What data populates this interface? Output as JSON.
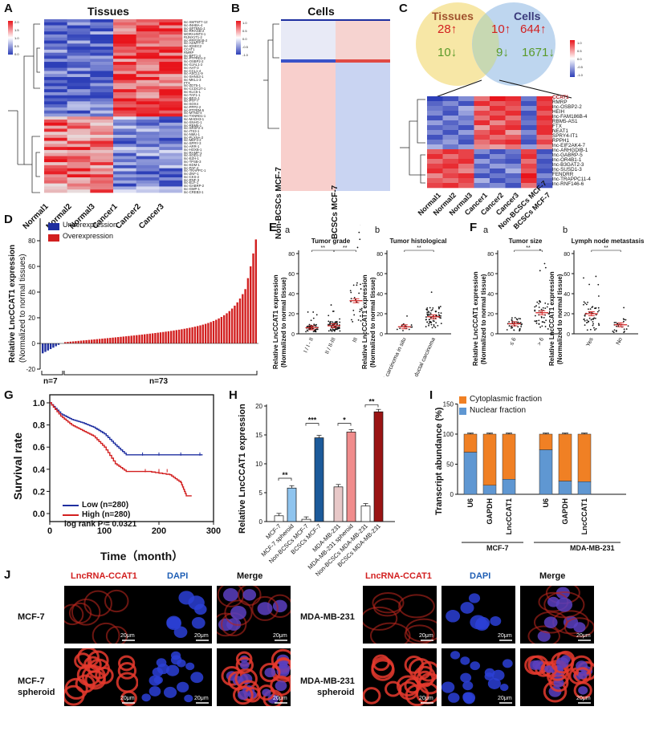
{
  "panel_letters": {
    "A": "A",
    "B": "B",
    "C": "C",
    "D": "D",
    "E": "E",
    "F": "F",
    "G": "G",
    "H": "H",
    "I": "I",
    "J": "J"
  },
  "panelA": {
    "title": "Tissues",
    "samples": [
      "Normal1",
      "Normal2",
      "Normal3",
      "Cancer1",
      "Cancer2",
      "Cancer3"
    ],
    "genes": [
      "lnc-SMTNT7-12",
      "lnc-INHBA-4",
      "lnc-SPTBN1-1",
      "lnc-RRAGB-2",
      "MORAHNT3-1",
      "RUNX1T1-2",
      "lnc-PPP2R1B-2",
      "lnc-ADMTT-4",
      "lnc-IQSEC2",
      "CCAT1",
      "RMRP",
      "lnc-BPT1-4",
      "lnc-PTPRD1-2",
      "lnc-OSBP2-2",
      "lnc-GJAL1-2",
      "lnc-AHT-3",
      "lnc-CCL1-4",
      "lnc-ASCL1-9",
      "lnc-SHNS3-1",
      "lnc-MKL1-3",
      "FTX",
      "lnc-ZDT5-1",
      "lnc-CCDC27-1",
      "lnc-KLC5-1",
      "lnc-TAF1-1",
      "lnc-BRI1-1",
      "lnc-PTF-7",
      "lnc-SOX4",
      "lnc-PPP2-2",
      "lnc-PTPRM-5",
      "lnc-MTND-4",
      "lnc-TXNRD1-1",
      "lnc-MADH3-1",
      "lnc-SNHG-1",
      "lnc-RBM5-1",
      "lnc-SRSF2-4",
      "lnc-ITS3-1",
      "lnc-NMU-1",
      "lnc-PLXNA-2",
      "lnc-MEF2-2",
      "lnc-SPRY-3",
      "lnc-ARR-1",
      "lnc-HOXB-1",
      "lnc-RAMP-1",
      "lnc-SOD1-2",
      "lnc-EZH-1",
      "lnc-TPSB-3",
      "lnc-KDM-1",
      "lnc-PAF-4",
      "lnc-TRAPPC-1",
      "lnc-ZNF-1",
      "lnc-CKS-2",
      "lnc-RNF-3",
      "lnc-ELF-1",
      "lnc-GABRP-2",
      "lnc-GMP-1",
      "lnc-CREB3-1"
    ],
    "legend_ticks": [
      "2.0",
      "1.5",
      "1.0",
      "0.5",
      "0.0"
    ]
  },
  "panelB": {
    "title": "Cells",
    "samples": [
      "Non-BCSCs MCF-7",
      "BCSCs MCF-7"
    ],
    "legend_ticks": [
      "1.0",
      "0.5",
      "0.0",
      "-0.5",
      "-1.0"
    ]
  },
  "panelC": {
    "venn_left_title": "Tissues",
    "venn_right_title": "Cells",
    "venn_left_up": "28↑",
    "venn_left_down": "10↓",
    "venn_mid_up": "10↑",
    "venn_mid_down": "9↓",
    "venn_right_up": "644↑",
    "venn_right_down": "1671↓",
    "genes": [
      "CCAT1",
      "RMRP",
      "lnc-OSBP2-2",
      "HEIH",
      "lnc-FAM186B-4",
      "RBM5-AS1",
      "FTX",
      "NEAT1",
      "SPRY4-IT1",
      "RPPH1",
      "lnc-EIF2AK4-7",
      "lnc-ARHGDIB-1",
      "lnc-GABRP-5",
      "lnc-OR4B1-1",
      "lnc-B3GAT2-3",
      "lnc-SUSD1-3",
      "FENDRR",
      "lnc-TRAPPC11-4",
      "lnc-RNF146-6"
    ],
    "samples": [
      "Normal1",
      "Normal2",
      "Normal3",
      "Cancer1",
      "Cancer2",
      "Cancer3",
      "Non-BCSCs MCF-7",
      "BCSCs MCF-7"
    ],
    "legend_ticks": [
      "1.0",
      "0.5",
      "0.0",
      "-0.5",
      "-1.0"
    ]
  },
  "panelD": {
    "legend_under": "Underexpression",
    "legend_over": "Overexpression",
    "ylabel": "Relative LncCCAT1 expression",
    "ylabel2": "(Normalized to normal tissues)",
    "yticks": [
      "80",
      "60",
      "40",
      "20",
      "0",
      "-20"
    ],
    "n_under": "n=7",
    "n_over": "n=73"
  },
  "panelE": {
    "sub_a": "a",
    "sub_b": "b",
    "title_a": "Tumor grade",
    "title_b": "Tumor histological",
    "ylabel": "Relative LncCCAT1 expression",
    "ylabel2": "(Normalized to normal tissue)",
    "yticks": [
      "80",
      "60",
      "40",
      "20",
      "0"
    ],
    "cats_a": [
      "I / I - II",
      "II / II-III",
      "III"
    ],
    "cats_b": [
      "Ductal carcinoma in situ",
      "Invasive ductal carcinoma"
    ],
    "sig": "**"
  },
  "panelF": {
    "sub_a": "a",
    "sub_b": "b",
    "title_a": "Tumor size",
    "title_b": "Lymph node metastasis",
    "ylabel": "Relative LncCCAT1 expression",
    "ylabel2": "(Normalized to normal tissue)",
    "yticks": [
      "80",
      "60",
      "40",
      "20",
      "0"
    ],
    "cats_a": [
      "≤ 6",
      "> 6"
    ],
    "cats_b": [
      "Yes",
      "No"
    ],
    "sig": "**"
  },
  "panelG": {
    "ylabel": "Survival rate",
    "xlabel": "Time（month）",
    "yticks": [
      "1.0",
      "0.8",
      "0.6",
      "0.4",
      "0.2",
      "0.0"
    ],
    "xticks": [
      "0",
      "100",
      "200",
      "300"
    ],
    "legend_low": "Low (n=280)",
    "legend_high": "High (n=280)",
    "logrank": "log rank P = 0.0321"
  },
  "panelH": {
    "ylabel": "Relative LncCCAT1 expression",
    "yticks": [
      "20",
      "15",
      "10",
      "5",
      "0"
    ],
    "sig": [
      "**",
      "***",
      "*",
      "**"
    ]
  },
  "panelI": {
    "ylabel": "Transcript abundance (%)",
    "yticks": [
      "150",
      "100",
      "50",
      "0"
    ],
    "legend_cyto": "Cytoplasmic fraction",
    "legend_nuc": "Nuclear fraction",
    "group1": "MCF-7",
    "group2": "MDA-MB-231"
  },
  "panelJ": {
    "col_ccat1": "LncRNA-CCAT1",
    "col_dapi": "DAPI",
    "col_merge": "Merge",
    "row1": "MCF-7",
    "row2a": "MCF-7",
    "row2b": "spheroid",
    "row3": "MDA-MB-231",
    "row4a": "MDA-MB-231",
    "row4b": "spheroid",
    "scale": "20μm"
  },
  "chart_data": [
    {
      "type": "heatmap",
      "title": "Tissues",
      "columns": [
        "Normal1",
        "Normal2",
        "Normal3",
        "Cancer1",
        "Cancer2",
        "Cancer3"
      ]
    },
    {
      "type": "heatmap",
      "title": "Cells",
      "columns": [
        "Non-BCSCs MCF-7",
        "BCSCs MCF-7"
      ]
    },
    {
      "type": "bar",
      "title": "Relative LncCCAT1 expression (Normalized to normal tissues)",
      "series": [
        {
          "name": "Underexpression",
          "count": 7
        },
        {
          "name": "Overexpression",
          "count": 73
        }
      ],
      "ylim": [
        -20,
        80
      ]
    },
    {
      "type": "scatter",
      "title": "Tumor grade",
      "categories": [
        "I / I - II",
        "II / II-III",
        "III"
      ],
      "means": [
        6,
        8,
        33
      ],
      "ylim": [
        0,
        80
      ]
    },
    {
      "type": "scatter",
      "title": "Tumor histological",
      "categories": [
        "Ductal carcinoma in situ",
        "Invasive ductal carcinoma"
      ],
      "means": [
        7,
        17
      ],
      "ylim": [
        0,
        80
      ]
    },
    {
      "type": "scatter",
      "title": "Tumor size",
      "categories": [
        "≤ 6",
        "> 6"
      ],
      "means": [
        10,
        21
      ],
      "ylim": [
        0,
        80
      ]
    },
    {
      "type": "scatter",
      "title": "Lymph node metastasis",
      "categories": [
        "Yes",
        "No"
      ],
      "means": [
        20,
        9
      ],
      "ylim": [
        0,
        80
      ]
    },
    {
      "type": "line",
      "title": "Kaplan-Meier survival",
      "xlabel": "Time（month）",
      "ylabel": "Survival rate",
      "series": [
        {
          "name": "Low (n=280)",
          "x": [
            0,
            20,
            40,
            60,
            80,
            100,
            120,
            140,
            160,
            280
          ],
          "y": [
            1.0,
            0.9,
            0.85,
            0.82,
            0.78,
            0.72,
            0.62,
            0.53,
            0.53,
            0.53
          ]
        },
        {
          "name": "High (n=280)",
          "x": [
            0,
            20,
            40,
            60,
            80,
            100,
            120,
            140,
            180,
            220,
            240,
            250,
            260
          ],
          "y": [
            1.0,
            0.88,
            0.8,
            0.75,
            0.7,
            0.6,
            0.45,
            0.38,
            0.38,
            0.35,
            0.28,
            0.16,
            0.16
          ]
        }
      ],
      "xlim": [
        0,
        300
      ],
      "ylim": [
        0,
        1.0
      ]
    },
    {
      "type": "bar",
      "title": "Relative LncCCAT1 expression",
      "categories": [
        "MCF-7",
        "MCF-7 spheroid",
        "Non-BCSCs MCF-7",
        "BCSCs MCF-7",
        "MDA-MB-231",
        "MDA-MB-231 spheroid",
        "Non-BCSCs MDA-MB-231",
        "BCSCs MDA-MB-231"
      ],
      "values": [
        1.0,
        5.8,
        0.4,
        14.5,
        6.0,
        15.5,
        2.7,
        19.0
      ],
      "ylim": [
        0,
        20
      ]
    },
    {
      "type": "bar",
      "title": "Transcript abundance (%)",
      "categories": [
        "U6",
        "GAPDH",
        "LncCCAT1",
        "U6",
        "GAPDH",
        "LncCCAT1"
      ],
      "series": [
        {
          "name": "Nuclear fraction",
          "values": [
            70,
            15,
            25,
            74,
            22,
            21
          ]
        },
        {
          "name": "Cytoplasmic fraction",
          "values": [
            30,
            85,
            75,
            26,
            78,
            79
          ]
        }
      ],
      "ylim": [
        0,
        150
      ]
    }
  ]
}
